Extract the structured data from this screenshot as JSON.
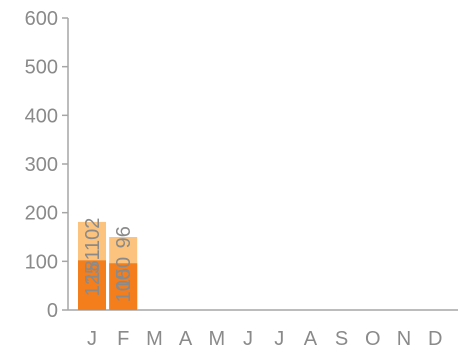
{
  "chart_data": {
    "type": "bar",
    "stacked": true,
    "categories": [
      "J",
      "F",
      "M",
      "A",
      "M",
      "J",
      "J",
      "A",
      "S",
      "O",
      "N",
      "D"
    ],
    "series": [
      {
        "values": [
          125,
          100,
          null,
          null,
          null,
          null,
          null,
          null,
          null,
          null,
          null,
          null
        ],
        "color": "#fdd7a2"
      },
      {
        "values": [
          181,
          150,
          null,
          null,
          null,
          null,
          null,
          null,
          null,
          null,
          null,
          null
        ],
        "color": "#fbc37d"
      },
      {
        "values": [
          102,
          96,
          null,
          null,
          null,
          null,
          null,
          null,
          null,
          null,
          null,
          null
        ],
        "color": "#f47d1c"
      }
    ],
    "y_ticks": [
      "0",
      "100",
      "200",
      "300",
      "400",
      "500",
      "600"
    ],
    "ylim": [
      0,
      600
    ],
    "grid": false,
    "legend": "none",
    "data_labels": {
      "color": "#8a8a8a",
      "orientation": "vertical",
      "top_series_position": "above"
    },
    "axis_color": "#a6a6a6"
  }
}
